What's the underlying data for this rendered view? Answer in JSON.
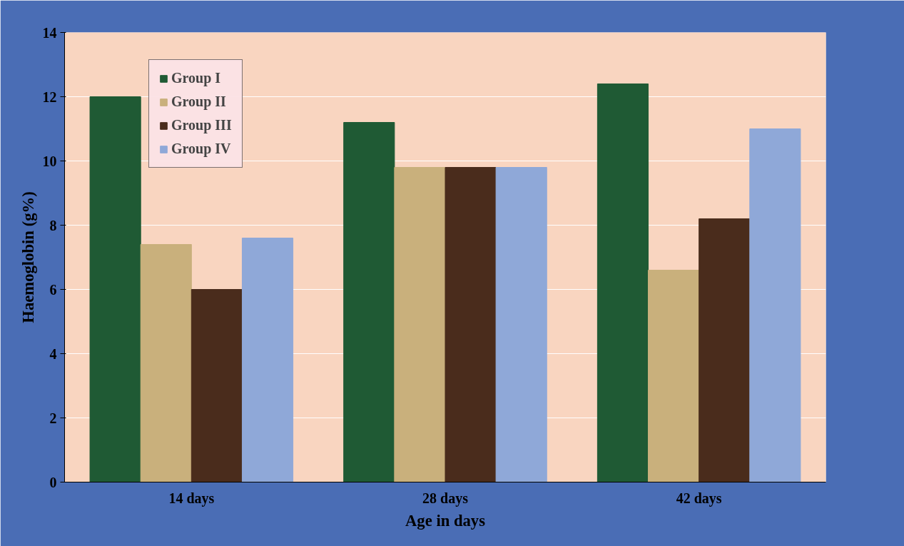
{
  "chart_data": {
    "type": "bar",
    "xlabel": "Age in days",
    "ylabel": "Haemoglobin (g%)",
    "categories": [
      "14 days",
      "28 days",
      "42 days"
    ],
    "series": [
      {
        "name": "Group I",
        "color": "#1f5a34",
        "values": [
          12.0,
          11.2,
          12.4
        ]
      },
      {
        "name": "Group II",
        "color": "#c9b07c",
        "values": [
          7.4,
          9.8,
          6.6
        ]
      },
      {
        "name": "Group III",
        "color": "#4a2c1c",
        "values": [
          6.0,
          9.8,
          8.2
        ]
      },
      {
        "name": "Group IV",
        "color": "#8fa8d8",
        "values": [
          7.6,
          9.8,
          11.0
        ]
      }
    ],
    "ylim": [
      0,
      14
    ],
    "yticks": [
      0,
      2,
      4,
      6,
      8,
      10,
      12,
      14
    ],
    "grid": "y",
    "legend": "top left"
  }
}
